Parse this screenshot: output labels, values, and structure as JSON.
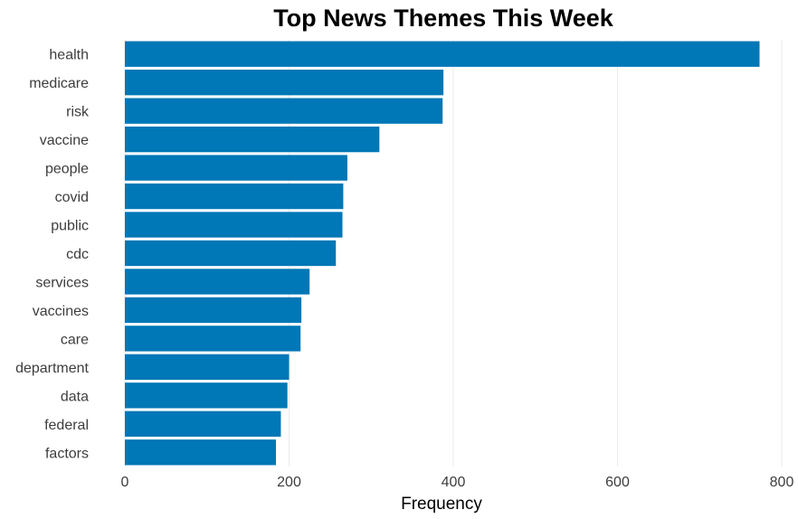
{
  "chart_data": {
    "type": "bar",
    "orientation": "horizontal",
    "title": "Top News Themes This Week",
    "xlabel": "Frequency",
    "ylabel": "",
    "categories": [
      "health",
      "medicare",
      "risk",
      "vaccine",
      "people",
      "covid",
      "public",
      "cdc",
      "services",
      "vaccines",
      "care",
      "department",
      "data",
      "federal",
      "factors"
    ],
    "values": [
      773,
      388,
      387,
      310,
      271,
      266,
      265,
      257,
      225,
      215,
      214,
      200,
      198,
      190,
      184
    ],
    "xlim": [
      0,
      800
    ],
    "xticks": [
      0,
      200,
      400,
      600,
      800
    ],
    "bar_color": "#0077b6",
    "grid": true
  }
}
